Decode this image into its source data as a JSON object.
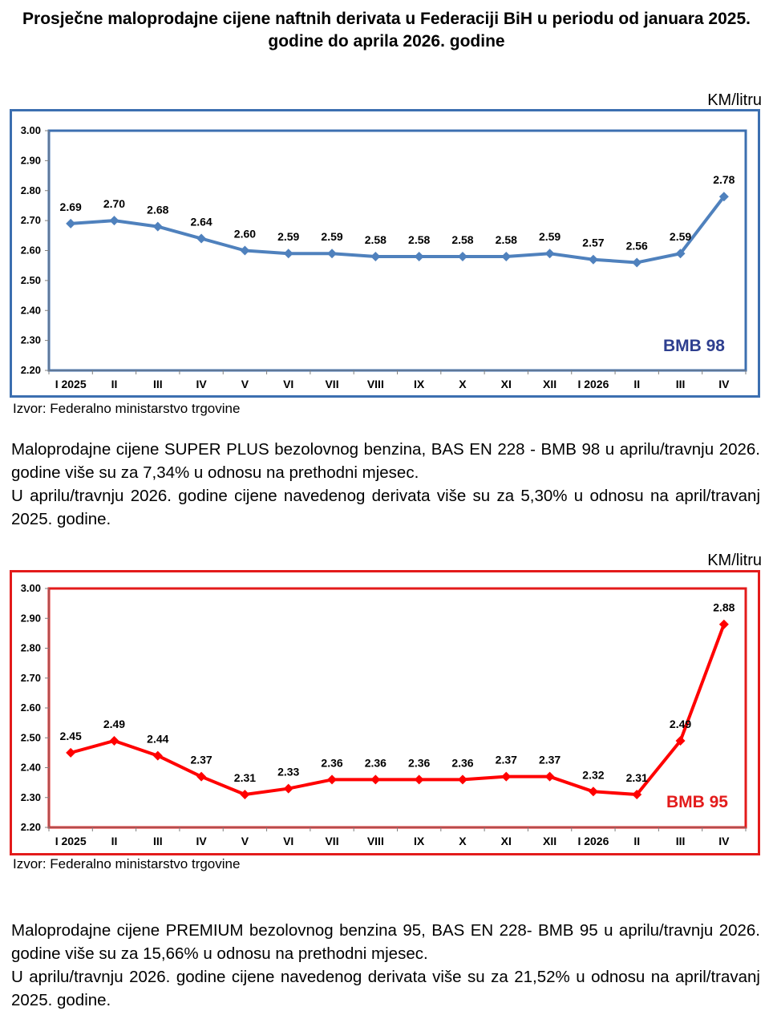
{
  "page": {
    "title": "Prosječne maloprodajne cijene naftnih derivata u Federaciji BiH u periodu od januara 2025. godine do aprila 2026. godine",
    "source_1": "Izvor: Federalno ministarstvo trgovine",
    "source_2": "Izvor: Federalno ministarstvo trgovine",
    "para_1a": "Maloprodajne cijene SUPER PLUS bezolovnog benzina, BAS EN 228 - BMB 98 u aprilu/travnju 2026. godine više su za 7,34% u odnosu na prethodni mjesec.",
    "para_1b": "U aprilu/travnju 2026. godine cijene navedenog derivata više su za 5,30% u odnosu na april/travanj 2025. godine.",
    "para_2a": "Maloprodajne cijene PREMIUM bezolovnog benzina 95, BAS EN 228- BMB 95 u aprilu/travnju 2026. godine više su za 15,66% u odnosu na prethodni mjesec.",
    "para_2b": "U aprilu/travnju 2026. godine cijene navedenog derivata više su za 21,52% u odnosu na april/travanj 2025. godine."
  },
  "chart_data": [
    {
      "type": "line",
      "unit_label": "KM/litru",
      "series_label": "BMB 98",
      "categories": [
        "I 2025",
        "II",
        "III",
        "IV",
        "V",
        "VI",
        "VII",
        "VIII",
        "IX",
        "X",
        "XI",
        "XII",
        "I 2026",
        "II",
        "III",
        "IV"
      ],
      "values": [
        2.69,
        2.7,
        2.68,
        2.64,
        2.6,
        2.59,
        2.59,
        2.58,
        2.58,
        2.58,
        2.58,
        2.59,
        2.57,
        2.56,
        2.59,
        2.78
      ],
      "data_labels": [
        "2.69",
        "2.70",
        "2.68",
        "2.64",
        "2.60",
        "2.59",
        "2.59",
        "2.58",
        "2.58",
        "2.58",
        "2.58",
        "2.59",
        "2.57",
        "2.56",
        "2.59",
        "2.78"
      ],
      "ylim": [
        2.2,
        3.0
      ],
      "yticks": [
        "2.20",
        "2.30",
        "2.40",
        "2.50",
        "2.60",
        "2.70",
        "2.80",
        "2.90",
        "3.00"
      ],
      "line_color": "#4f81bd",
      "frame_color": "#3c6fb0",
      "label_color": "#2e3f8f",
      "grid": false
    },
    {
      "type": "line",
      "unit_label": "KM/litru",
      "series_label": "BMB 95",
      "categories": [
        "I 2025",
        "II",
        "III",
        "IV",
        "V",
        "VI",
        "VII",
        "VIII",
        "IX",
        "X",
        "XI",
        "XII",
        "I 2026",
        "II",
        "III",
        "IV"
      ],
      "values": [
        2.45,
        2.49,
        2.44,
        2.37,
        2.31,
        2.33,
        2.36,
        2.36,
        2.36,
        2.36,
        2.37,
        2.37,
        2.32,
        2.31,
        2.49,
        2.88
      ],
      "data_labels": [
        "2.45",
        "2.49",
        "2.44",
        "2.37",
        "2.31",
        "2.33",
        "2.36",
        "2.36",
        "2.36",
        "2.36",
        "2.37",
        "2.37",
        "2.32",
        "2.31",
        "2.49",
        "2.88"
      ],
      "ylim": [
        2.2,
        3.0
      ],
      "yticks": [
        "2.20",
        "2.30",
        "2.40",
        "2.50",
        "2.60",
        "2.70",
        "2.80",
        "2.90",
        "3.00"
      ],
      "line_color": "#ff0000",
      "frame_color": "#e31b1b",
      "label_color": "#e31b1b",
      "grid": false
    }
  ]
}
